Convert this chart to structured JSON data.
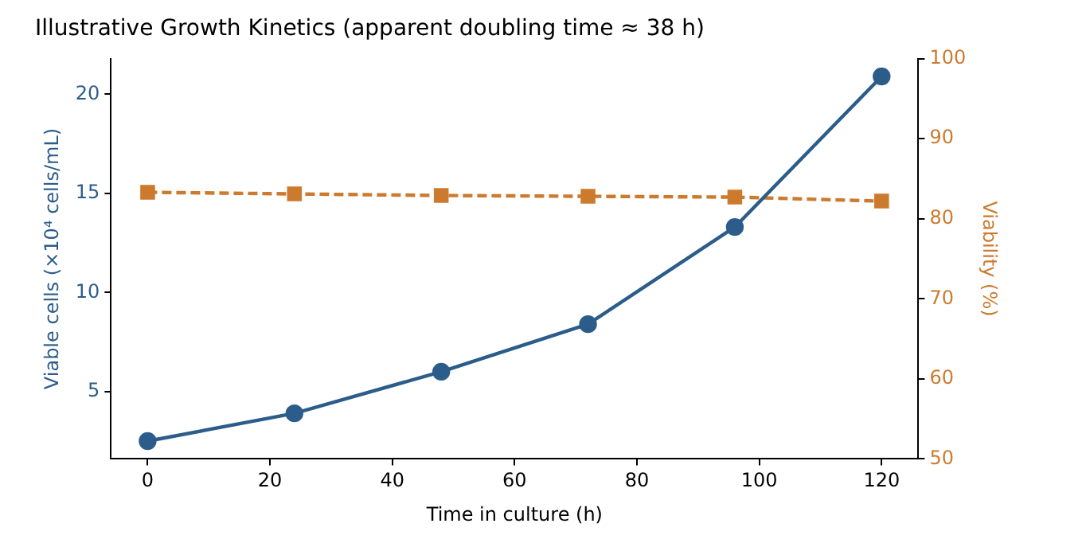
{
  "chart_data": {
    "type": "line",
    "title": "Illustrative Growth Kinetics (apparent doubling time ≈ 38 h)",
    "xlabel": "Time in culture (h)",
    "ylabel": "Viable cells (×10⁴ cells/mL)",
    "y2label": "Viability (%)",
    "x": [
      0,
      24,
      48,
      72,
      96,
      120
    ],
    "series": [
      {
        "color": "#2c5d8a",
        "values": [
          2.5,
          3.9,
          6.0,
          8.4,
          13.3,
          20.9
        ],
        "marker": "circle",
        "line_style": "solid"
      },
      {
        "color": "#cc7a2e",
        "values": [
          83.3,
          83.1,
          82.9,
          82.8,
          82.7,
          82.2
        ],
        "axis": "y2",
        "marker": "square",
        "line_style": "dashed"
      }
    ],
    "xlim": [
      -6,
      126
    ],
    "xticks": [
      0,
      20,
      40,
      60,
      80,
      100,
      120
    ],
    "ylim": [
      1.6,
      21.8
    ],
    "yticks": [
      5,
      10,
      15,
      20
    ],
    "y2lim": [
      50,
      100
    ],
    "y2ticks": [
      50,
      60,
      70,
      80,
      90,
      100
    ],
    "grid": false,
    "legend": false
  }
}
